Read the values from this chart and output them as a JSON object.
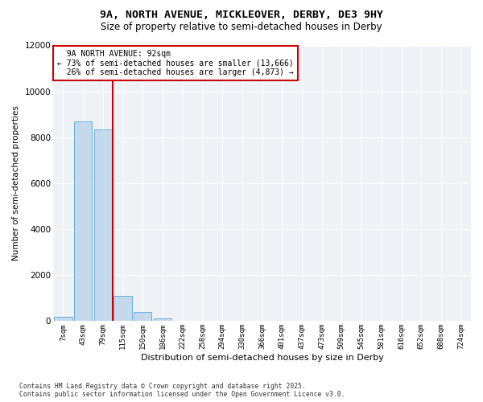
{
  "title": "9A, NORTH AVENUE, MICKLEOVER, DERBY, DE3 9HY",
  "subtitle": "Size of property relative to semi-detached houses in Derby",
  "xlabel": "Distribution of semi-detached houses by size in Derby",
  "ylabel": "Number of semi-detached properties",
  "property_label": "9A NORTH AVENUE: 92sqm",
  "pct_smaller": 73,
  "pct_larger": 26,
  "count_smaller": 13666,
  "count_larger": 4873,
  "bin_labels": [
    "7sqm",
    "43sqm",
    "79sqm",
    "115sqm",
    "150sqm",
    "186sqm",
    "222sqm",
    "258sqm",
    "294sqm",
    "330sqm",
    "366sqm",
    "401sqm",
    "437sqm",
    "473sqm",
    "509sqm",
    "545sqm",
    "581sqm",
    "616sqm",
    "652sqm",
    "688sqm",
    "724sqm"
  ],
  "bin_values": [
    200,
    8700,
    8350,
    1100,
    400,
    120,
    20,
    8,
    3,
    1,
    0,
    0,
    0,
    0,
    0,
    0,
    0,
    0,
    0,
    0,
    0
  ],
  "bar_color": "#c5d9ed",
  "bar_edge_color": "#6baed6",
  "vline_x_index": 2.5,
  "ylim": [
    0,
    12000
  ],
  "yticks": [
    0,
    2000,
    4000,
    6000,
    8000,
    10000,
    12000
  ],
  "bg_color": "#eef2f7",
  "grid_color": "#ffffff",
  "annotation_box_color": "#ffffff",
  "annotation_box_edge": "#cc0000",
  "footer": "Contains HM Land Registry data © Crown copyright and database right 2025.\nContains public sector information licensed under the Open Government Licence v3.0."
}
